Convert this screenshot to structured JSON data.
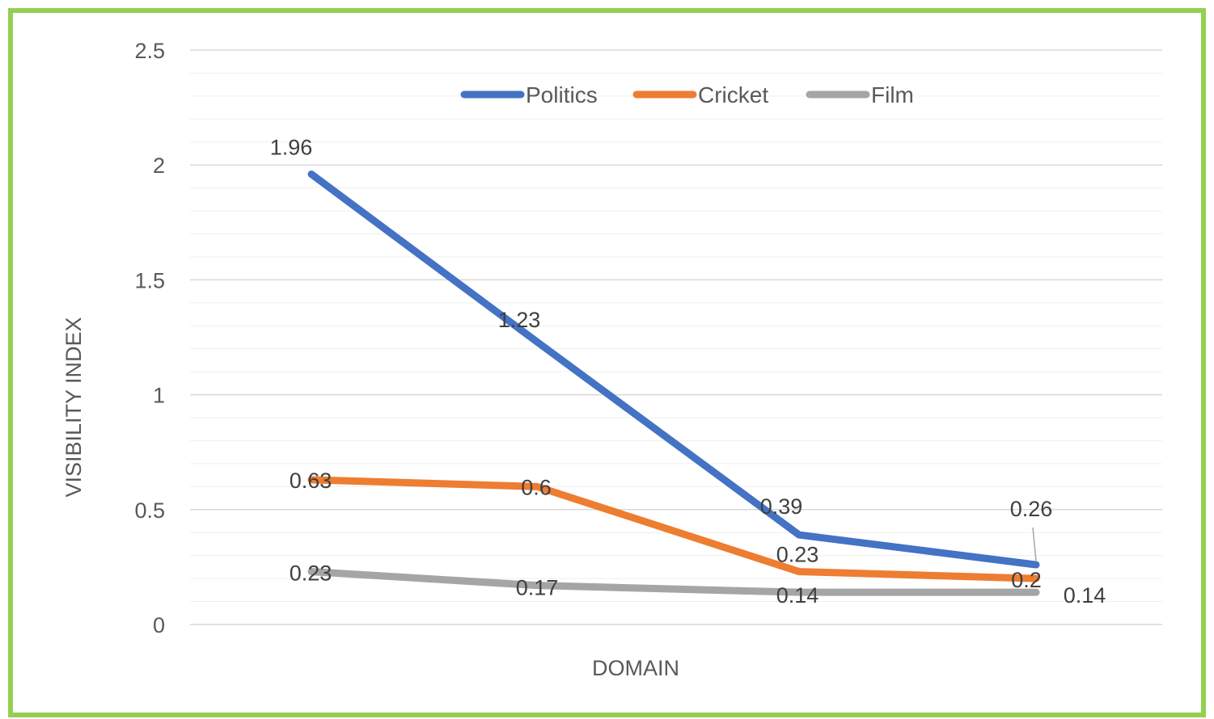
{
  "chart_data": {
    "type": "line",
    "categories": [
      "",
      "",
      "",
      ""
    ],
    "series": [
      {
        "name": "Politics",
        "values": [
          1.96,
          1.23,
          0.39,
          0.26
        ],
        "labels": [
          "1.96",
          "1.23",
          "0.39",
          "0.26"
        ],
        "color": "#4472c4"
      },
      {
        "name": "Cricket",
        "values": [
          0.63,
          0.6,
          0.23,
          0.2
        ],
        "labels": [
          "0.63",
          "0.6",
          "0.23",
          "0.2"
        ],
        "color": "#ed7d31"
      },
      {
        "name": "Film",
        "values": [
          0.23,
          0.17,
          0.14,
          0.14
        ],
        "labels": [
          "0.23",
          "0.17",
          "0.14",
          "0.14"
        ],
        "color": "#a5a5a5"
      }
    ],
    "y_ticks": [
      "0",
      "0.5",
      "1",
      "1.5",
      "2",
      "2.5"
    ],
    "ylim": [
      0,
      2.5
    ],
    "xlabel": "DOMAIN",
    "ylabel": "VISIBILITY INDEX",
    "grid": true,
    "legend_position": "top",
    "border_color": "#92d050"
  }
}
